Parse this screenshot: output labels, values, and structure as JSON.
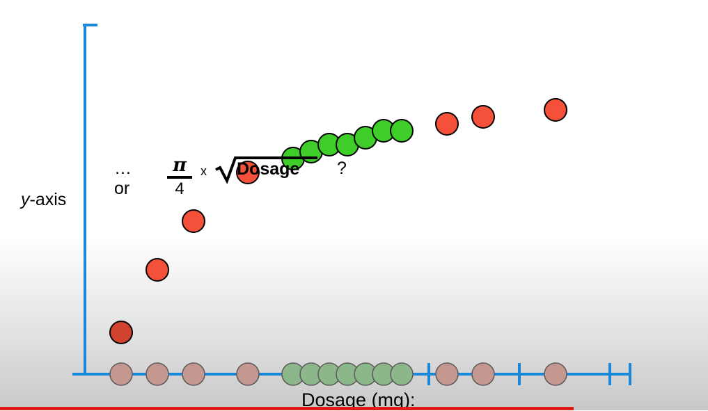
{
  "labels": {
    "y_axis_var": "y",
    "y_axis_rest": "-axis",
    "x_axis": "Dosage (mg):"
  },
  "formula": {
    "lead": "…or",
    "numerator": "π",
    "denominator": "4",
    "times": "x",
    "radicand": "Dosage",
    "question": "?"
  },
  "colors": {
    "axis": "#1a87d8",
    "red": "#f5503a",
    "green": "#3fcd2a",
    "dark_red": "#d2432f",
    "projection_red": "#c49790",
    "projection_green": "#8cb78a",
    "progress_played": "#e01b1b",
    "progress_rest": "#c8c8c8"
  },
  "chart_data": {
    "type": "scatter",
    "x_range": [
      0,
      30
    ],
    "y_range": [
      0,
      10
    ],
    "x_ticks": [
      4,
      9,
      19,
      24,
      29
    ],
    "points": [
      {
        "x": 2.0,
        "y": 0.6,
        "class": "dark_red"
      },
      {
        "x": 4.0,
        "y": 1.5,
        "class": "red"
      },
      {
        "x": 6.0,
        "y": 2.2,
        "class": "red"
      },
      {
        "x": 9.0,
        "y": 2.9,
        "class": "red"
      },
      {
        "x": 11.5,
        "y": 3.1,
        "class": "green"
      },
      {
        "x": 12.5,
        "y": 3.2,
        "class": "green"
      },
      {
        "x": 13.5,
        "y": 3.3,
        "class": "green"
      },
      {
        "x": 14.5,
        "y": 3.3,
        "class": "green"
      },
      {
        "x": 15.5,
        "y": 3.4,
        "class": "green"
      },
      {
        "x": 16.5,
        "y": 3.5,
        "class": "green"
      },
      {
        "x": 17.5,
        "y": 3.5,
        "class": "green"
      },
      {
        "x": 20.0,
        "y": 3.6,
        "class": "red"
      },
      {
        "x": 22.0,
        "y": 3.7,
        "class": "red"
      },
      {
        "x": 26.0,
        "y": 3.8,
        "class": "red"
      }
    ]
  },
  "progress": {
    "played_fraction": 0.81
  }
}
